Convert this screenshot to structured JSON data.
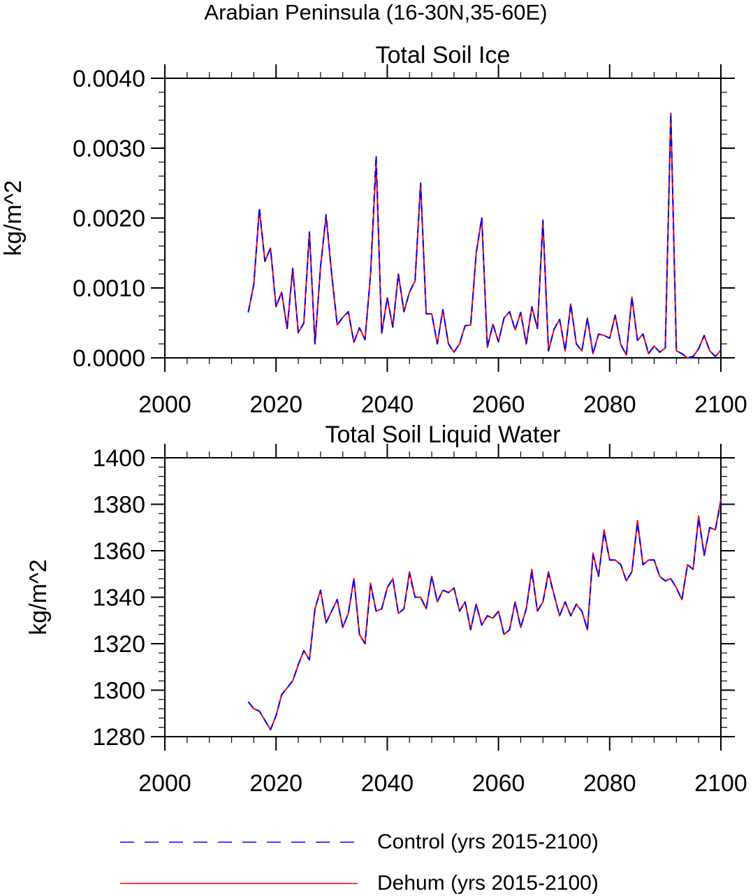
{
  "figure": {
    "suptitle": "Arabian Peninsula (16-30N,35-60E)"
  },
  "legend": {
    "placement": "bottom",
    "entries": [
      {
        "label": "Control (yrs 2015-2100)",
        "color": "#0000ff",
        "style": "dashed"
      },
      {
        "label": "Dehum (yrs 2015-2100)",
        "color": "#ff0000",
        "style": "solid"
      }
    ]
  },
  "chart_data": [
    {
      "type": "line",
      "title": "Total Soil Ice",
      "xlabel": "",
      "ylabel": "kg/m^2",
      "xlim": [
        2000,
        2100
      ],
      "ylim": [
        0,
        0.004
      ],
      "xticks": [
        2000,
        2020,
        2040,
        2060,
        2080,
        2100
      ],
      "xtick_labels": [
        "2000",
        "2020",
        "2040",
        "2060",
        "2080",
        "2100"
      ],
      "yticks": [
        0,
        0.001,
        0.002,
        0.003,
        0.004
      ],
      "ytick_labels": [
        "0.0000",
        "0.0010",
        "0.0020",
        "0.0030",
        "0.0040"
      ],
      "grid": false,
      "x": [
        2015,
        2016,
        2017,
        2018,
        2019,
        2020,
        2021,
        2022,
        2023,
        2024,
        2025,
        2026,
        2027,
        2028,
        2029,
        2030,
        2031,
        2032,
        2033,
        2034,
        2035,
        2036,
        2037,
        2038,
        2039,
        2040,
        2041,
        2042,
        2043,
        2044,
        2045,
        2046,
        2047,
        2048,
        2049,
        2050,
        2051,
        2052,
        2053,
        2054,
        2055,
        2056,
        2057,
        2058,
        2059,
        2060,
        2061,
        2062,
        2063,
        2064,
        2065,
        2066,
        2067,
        2068,
        2069,
        2070,
        2071,
        2072,
        2073,
        2074,
        2075,
        2076,
        2077,
        2078,
        2079,
        2080,
        2081,
        2082,
        2083,
        2084,
        2085,
        2086,
        2087,
        2088,
        2089,
        2090,
        2091,
        2092,
        2093,
        2094,
        2095,
        2096,
        2097,
        2098,
        2099,
        2100
      ],
      "series": [
        {
          "name": "Control (yrs 2015-2100)",
          "color": "#0000ff",
          "style": "dashed",
          "values": [
            0.00065,
            0.00105,
            0.00215,
            0.00138,
            0.00157,
            0.00073,
            0.00094,
            0.00042,
            0.00128,
            0.00036,
            0.0005,
            0.0018,
            0.0002,
            0.0013,
            0.00205,
            0.0012,
            0.00047,
            0.00058,
            0.00066,
            0.00022,
            0.00043,
            0.00026,
            0.0012,
            0.0029,
            0.00035,
            0.00086,
            0.00044,
            0.0012,
            0.00066,
            0.00094,
            0.0011,
            0.0025,
            0.00063,
            0.00063,
            0.0002,
            0.00069,
            0.0002,
            8e-05,
            0.0002,
            0.00046,
            0.00047,
            0.0015,
            0.00201,
            0.00015,
            0.00048,
            0.00023,
            0.00057,
            0.00066,
            0.0004,
            0.00065,
            0.0002,
            0.00073,
            0.00042,
            0.00197,
            0.0001,
            0.00041,
            0.00055,
            0.0001,
            0.00077,
            0.0002,
            0.0001,
            0.00057,
            6e-05,
            0.00034,
            0.00032,
            0.00028,
            0.00061,
            0.00019,
            4e-05,
            0.00087,
            0.00025,
            0.00034,
            6e-05,
            0.00017,
            8e-05,
            0.00014,
            0.0035,
            0.0001,
            6e-05,
            0.0,
            2e-05,
            0.00013,
            0.00032,
            0.0001,
            2e-05,
            0.00011
          ]
        },
        {
          "name": "Dehum (yrs 2015-2100)",
          "color": "#ff0000",
          "style": "solid",
          "values": [
            0.00065,
            0.00105,
            0.00212,
            0.00138,
            0.00157,
            0.00073,
            0.00094,
            0.00042,
            0.00128,
            0.00036,
            0.0005,
            0.0018,
            0.0002,
            0.0013,
            0.00203,
            0.0012,
            0.00047,
            0.00058,
            0.00066,
            0.00022,
            0.00043,
            0.00026,
            0.0012,
            0.0028,
            0.00035,
            0.00086,
            0.00044,
            0.0012,
            0.00066,
            0.00094,
            0.0011,
            0.0025,
            0.00063,
            0.00063,
            0.0002,
            0.00069,
            0.0002,
            8e-05,
            0.0002,
            0.00046,
            0.00047,
            0.0015,
            0.002,
            0.00015,
            0.00048,
            0.00023,
            0.00057,
            0.00066,
            0.0004,
            0.00065,
            0.0002,
            0.00073,
            0.00042,
            0.00195,
            0.0001,
            0.00041,
            0.00055,
            0.0001,
            0.00077,
            0.0002,
            0.0001,
            0.00057,
            6e-05,
            0.00034,
            0.00032,
            0.00028,
            0.00061,
            0.00019,
            4e-05,
            0.00087,
            0.00025,
            0.00034,
            6e-05,
            0.00017,
            8e-05,
            0.00014,
            0.0035,
            0.0001,
            6e-05,
            0.0,
            2e-05,
            0.00013,
            0.00032,
            0.0001,
            2e-05,
            0.00011
          ]
        }
      ]
    },
    {
      "type": "line",
      "title": "Total Soil Liquid Water",
      "xlabel": "",
      "ylabel": "kg/m^2",
      "xlim": [
        2000,
        2100
      ],
      "ylim": [
        1280,
        1400
      ],
      "xticks": [
        2000,
        2020,
        2040,
        2060,
        2080,
        2100
      ],
      "xtick_labels": [
        "2000",
        "2020",
        "2040",
        "2060",
        "2080",
        "2100"
      ],
      "yticks": [
        1280,
        1300,
        1320,
        1340,
        1360,
        1380,
        1400
      ],
      "ytick_labels": [
        "1280",
        "1300",
        "1320",
        "1340",
        "1360",
        "1380",
        "1400"
      ],
      "grid": false,
      "x": [
        2015,
        2016,
        2017,
        2018,
        2019,
        2020,
        2021,
        2022,
        2023,
        2024,
        2025,
        2026,
        2027,
        2028,
        2029,
        2030,
        2031,
        2032,
        2033,
        2034,
        2035,
        2036,
        2037,
        2038,
        2039,
        2040,
        2041,
        2042,
        2043,
        2044,
        2045,
        2046,
        2047,
        2048,
        2049,
        2050,
        2051,
        2052,
        2053,
        2054,
        2055,
        2056,
        2057,
        2058,
        2059,
        2060,
        2061,
        2062,
        2063,
        2064,
        2065,
        2066,
        2067,
        2068,
        2069,
        2070,
        2071,
        2072,
        2073,
        2074,
        2075,
        2076,
        2077,
        2078,
        2079,
        2080,
        2081,
        2082,
        2083,
        2084,
        2085,
        2086,
        2087,
        2088,
        2089,
        2090,
        2091,
        2092,
        2093,
        2094,
        2095,
        2096,
        2097,
        2098,
        2099,
        2100
      ],
      "series": [
        {
          "name": "Control (yrs 2015-2100)",
          "color": "#0000ff",
          "style": "dashed",
          "values": [
            1295,
            1292,
            1291,
            1287,
            1283,
            1289,
            1298,
            1301,
            1304,
            1311,
            1317,
            1313,
            1335,
            1343,
            1329,
            1334,
            1339,
            1327,
            1333,
            1348,
            1324,
            1320,
            1345,
            1334,
            1335,
            1344,
            1348,
            1333,
            1335,
            1350,
            1340,
            1340,
            1335,
            1349,
            1338,
            1343,
            1342,
            1344,
            1334,
            1338,
            1326,
            1337,
            1328,
            1332,
            1331,
            1334,
            1324,
            1326,
            1338,
            1327,
            1335,
            1351,
            1334,
            1338,
            1350,
            1341,
            1332,
            1338,
            1332,
            1337,
            1334,
            1326,
            1358,
            1349,
            1368,
            1356,
            1356,
            1354,
            1347,
            1351,
            1372,
            1354,
            1356,
            1356,
            1349,
            1347,
            1348,
            1344,
            1339,
            1354,
            1352,
            1374,
            1358,
            1370,
            1369,
            1381
          ]
        },
        {
          "name": "Dehum (yrs 2015-2100)",
          "color": "#ff0000",
          "style": "solid",
          "values": [
            1295,
            1292,
            1291,
            1287,
            1283,
            1289,
            1298,
            1301,
            1304,
            1311,
            1317,
            1313,
            1335,
            1343,
            1329,
            1334,
            1339,
            1327,
            1333,
            1348,
            1324,
            1320,
            1346,
            1334,
            1335,
            1344,
            1348,
            1333,
            1335,
            1351,
            1340,
            1340,
            1335,
            1349,
            1338,
            1343,
            1342,
            1344,
            1334,
            1338,
            1326,
            1337,
            1328,
            1332,
            1331,
            1334,
            1324,
            1326,
            1338,
            1327,
            1335,
            1352,
            1334,
            1338,
            1351,
            1341,
            1332,
            1338,
            1332,
            1337,
            1334,
            1326,
            1359,
            1349,
            1369,
            1356,
            1356,
            1354,
            1347,
            1351,
            1373,
            1354,
            1356,
            1356,
            1349,
            1347,
            1348,
            1344,
            1339,
            1354,
            1352,
            1375,
            1358,
            1370,
            1369,
            1382
          ]
        }
      ]
    }
  ]
}
